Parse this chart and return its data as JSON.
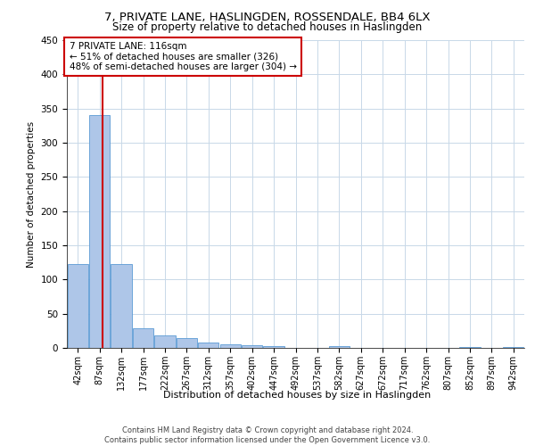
{
  "title": "7, PRIVATE LANE, HASLINGDEN, ROSSENDALE, BB4 6LX",
  "subtitle": "Size of property relative to detached houses in Haslingden",
  "xlabel": "Distribution of detached houses by size in Haslingden",
  "ylabel": "Number of detached properties",
  "bin_labels": [
    "42sqm",
    "87sqm",
    "132sqm",
    "177sqm",
    "222sqm",
    "267sqm",
    "312sqm",
    "357sqm",
    "402sqm",
    "447sqm",
    "492sqm",
    "537sqm",
    "582sqm",
    "627sqm",
    "672sqm",
    "717sqm",
    "762sqm",
    "807sqm",
    "852sqm",
    "897sqm",
    "942sqm"
  ],
  "bar_heights": [
    122,
    340,
    123,
    29,
    18,
    14,
    8,
    5,
    4,
    2,
    0,
    0,
    2,
    0,
    0,
    0,
    0,
    0,
    1,
    0,
    1
  ],
  "bar_color": "#aec6e8",
  "bar_edge_color": "#5b9bd5",
  "vline_color": "#cc0000",
  "annotation_text": "7 PRIVATE LANE: 116sqm\n← 51% of detached houses are smaller (326)\n48% of semi-detached houses are larger (304) →",
  "annotation_box_color": "#cc0000",
  "ylim": [
    0,
    450
  ],
  "yticks": [
    0,
    50,
    100,
    150,
    200,
    250,
    300,
    350,
    400,
    450
  ],
  "background_color": "#ffffff",
  "grid_color": "#c8d8e8",
  "footer_text": "Contains HM Land Registry data © Crown copyright and database right 2024.\nContains public sector information licensed under the Open Government Licence v3.0."
}
